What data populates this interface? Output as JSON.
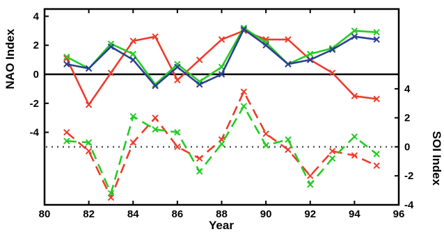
{
  "chart_data": {
    "type": "line",
    "title": "",
    "xlabel": "Year",
    "ylabel_left": "NAO Index",
    "ylabel_right": "SOI Index",
    "x_ticks": [
      "80",
      "82",
      "84",
      "86",
      "88",
      "90",
      "92",
      "94",
      "96"
    ],
    "left_y_ticks": [
      "4",
      "2",
      "0",
      "-2",
      "-4"
    ],
    "right_y_ticks": [
      "4",
      "2",
      "0",
      "-2",
      "-4"
    ],
    "xlim": [
      80,
      96
    ],
    "left_axis": {
      "ylim": [
        -9,
        4.5
      ],
      "zero_line": "solid"
    },
    "right_axis": {
      "ylim": [
        -4,
        9.5
      ],
      "zero_line": "dotted"
    },
    "x": [
      81,
      82,
      83,
      84,
      85,
      86,
      87,
      88,
      89,
      90,
      91,
      92,
      93,
      94,
      95
    ],
    "nao_series": [
      {
        "color": "#ee3b2b",
        "values": [
          1.1,
          -2.1,
          0.1,
          2.3,
          2.6,
          -0.4,
          1.0,
          2.4,
          3.0,
          2.4,
          2.4,
          1.0,
          0.1,
          -1.5,
          -1.7
        ]
      },
      {
        "color": "#22cc22",
        "values": [
          1.2,
          0.4,
          2.1,
          1.4,
          -0.7,
          0.7,
          -0.5,
          0.5,
          3.2,
          2.2,
          0.7,
          1.4,
          1.8,
          3.0,
          2.9
        ]
      },
      {
        "color": "#2b3f8f",
        "values": [
          0.7,
          0.4,
          1.9,
          1.0,
          -0.8,
          0.5,
          -0.7,
          0.0,
          3.1,
          2.0,
          0.7,
          1.0,
          1.7,
          2.6,
          2.4
        ]
      }
    ],
    "soi_series": [
      {
        "color": "#ee3b2b",
        "dashed": true,
        "values": [
          1.0,
          -0.3,
          -3.5,
          0.3,
          2.0,
          0.0,
          -0.8,
          0.5,
          3.8,
          0.9,
          -0.2,
          -2.0,
          -0.3,
          -0.6,
          -1.3
        ]
      },
      {
        "color": "#22cc22",
        "dashed": true,
        "values": [
          0.4,
          0.3,
          -3.2,
          2.1,
          1.2,
          1.0,
          -1.7,
          0.2,
          2.8,
          0.1,
          0.5,
          -2.6,
          -0.8,
          0.7,
          -0.5
        ]
      }
    ]
  }
}
